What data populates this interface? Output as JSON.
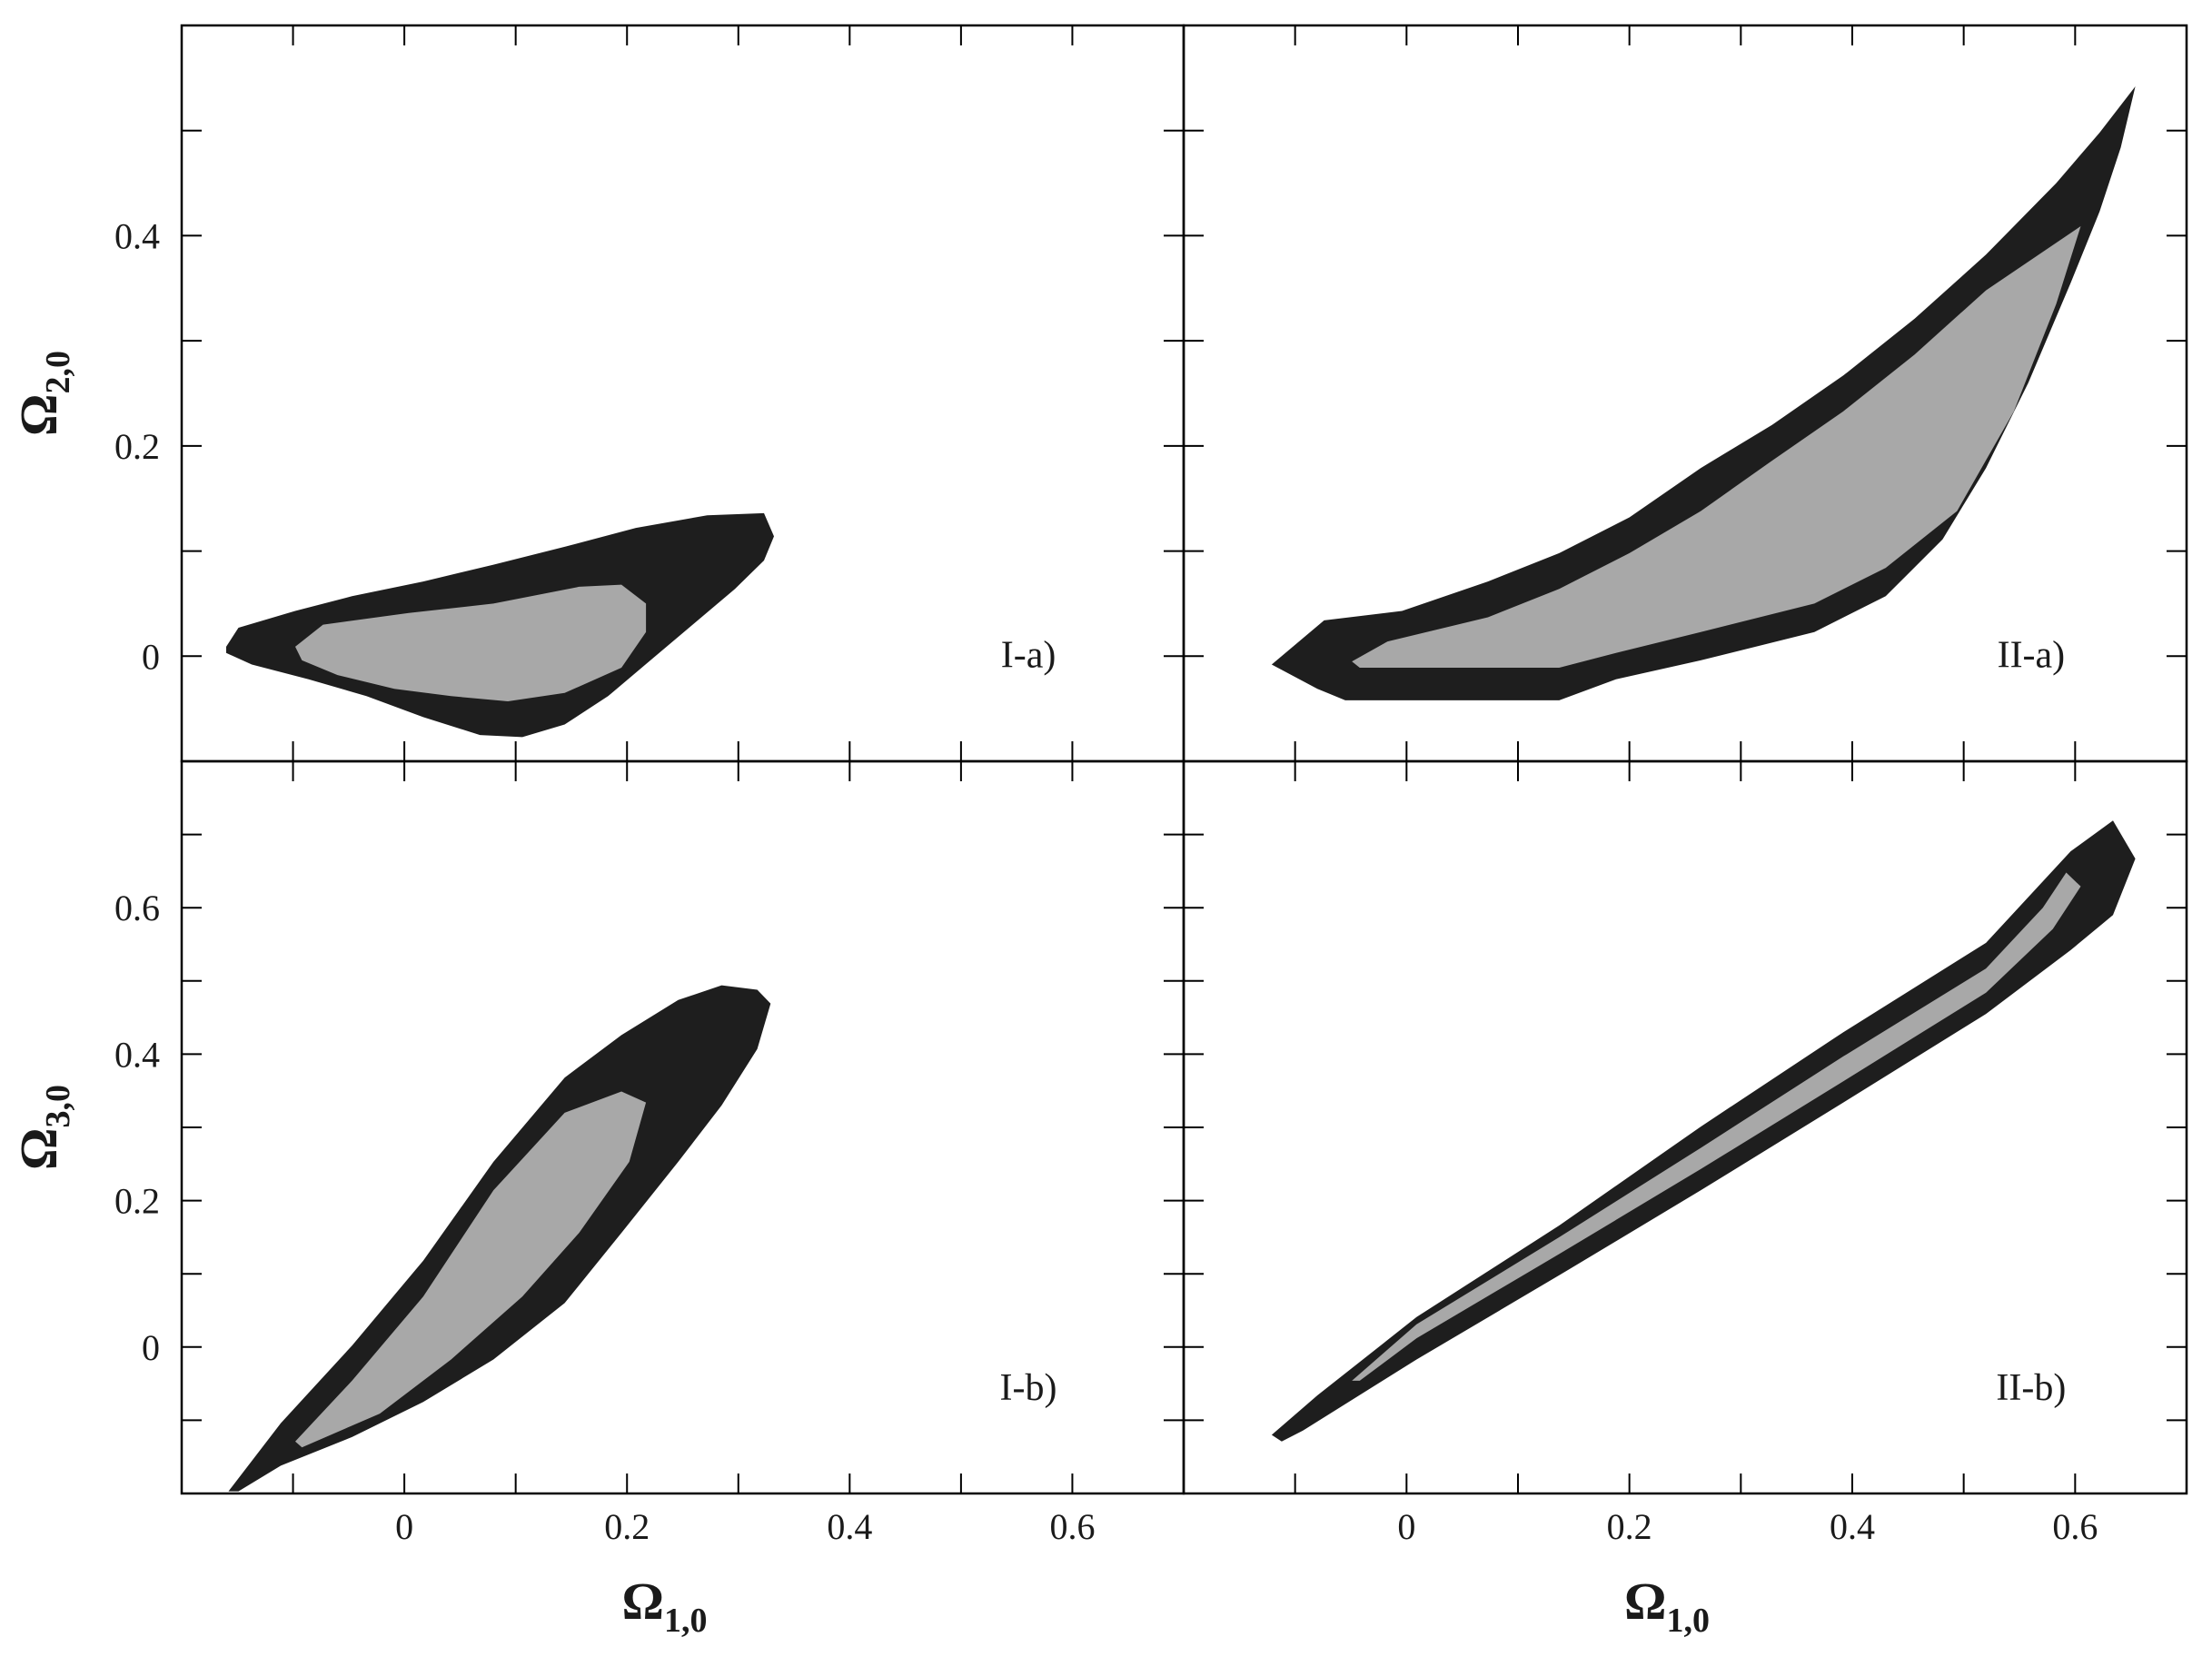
{
  "chart_data": [
    {
      "type": "contour",
      "annotation": "I-a)",
      "ylabel": {
        "text": "Ω",
        "sub": "2,0"
      },
      "xlim": [
        -0.2,
        0.7
      ],
      "xticks": [
        0,
        0.2,
        0.4,
        0.6
      ],
      "xticks_minor": [
        -0.1,
        0.1,
        0.3,
        0.5
      ],
      "xtick_labels": false,
      "ylim": [
        -0.1,
        0.6
      ],
      "yticks": [
        0,
        0.2,
        0.4
      ],
      "yticks_minor": [
        0.1,
        0.3,
        0.5
      ],
      "ytick_labels": true,
      "regions": [
        {
          "color": "#1e1e1e",
          "x": [
            -0.16,
            -0.149,
            -0.098,
            -0.047,
            0.017,
            0.08,
            0.144,
            0.208,
            0.272,
            0.323,
            0.332,
            0.323,
            0.297,
            0.259,
            0.221,
            0.183,
            0.144,
            0.106,
            0.068,
            0.017,
            -0.034,
            -0.086,
            -0.137,
            -0.16
          ],
          "y": [
            0.009,
            0.027,
            0.043,
            0.057,
            0.071,
            0.087,
            0.104,
            0.122,
            0.134,
            0.136,
            0.114,
            0.091,
            0.064,
            0.03,
            -0.004,
            -0.038,
            -0.065,
            -0.077,
            -0.075,
            -0.058,
            -0.038,
            -0.022,
            -0.008,
            0.003
          ]
        },
        {
          "color": "#a8a8a8",
          "x": [
            -0.098,
            -0.073,
            0.004,
            0.08,
            0.157,
            0.195,
            0.217,
            0.217,
            0.195,
            0.144,
            0.093,
            0.042,
            -0.009,
            -0.06,
            -0.092
          ],
          "y": [
            0.009,
            0.03,
            0.041,
            0.05,
            0.066,
            0.068,
            0.05,
            0.023,
            -0.011,
            -0.035,
            -0.043,
            -0.038,
            -0.031,
            -0.018,
            -0.004
          ]
        }
      ]
    },
    {
      "type": "contour",
      "annotation": "II-a)",
      "xlim": [
        -0.2,
        0.7
      ],
      "xticks": [
        0,
        0.2,
        0.4,
        0.6
      ],
      "xticks_minor": [
        -0.1,
        0.1,
        0.3,
        0.5
      ],
      "xtick_labels": false,
      "ylim": [
        -0.1,
        0.6
      ],
      "yticks": [
        0,
        0.2,
        0.4
      ],
      "yticks_minor": [
        0.1,
        0.3,
        0.5
      ],
      "ytick_labels": false,
      "regions": [
        {
          "color": "#1e1e1e",
          "x": [
            -0.121,
            -0.074,
            -0.004,
            0.073,
            0.137,
            0.2,
            0.264,
            0.328,
            0.392,
            0.456,
            0.52,
            0.583,
            0.622,
            0.654,
            0.641,
            0.622,
            0.596,
            0.558,
            0.52,
            0.481,
            0.43,
            0.366,
            0.264,
            0.188,
            0.137,
            -0.055,
            -0.08
          ],
          "y": [
            -0.008,
            0.034,
            0.043,
            0.071,
            0.098,
            0.132,
            0.179,
            0.22,
            0.267,
            0.321,
            0.382,
            0.45,
            0.498,
            0.542,
            0.484,
            0.423,
            0.355,
            0.26,
            0.179,
            0.111,
            0.057,
            0.023,
            -0.004,
            -0.022,
            -0.042,
            -0.042,
            -0.031
          ]
        },
        {
          "color": "#a8a8a8",
          "x": [
            -0.049,
            -0.017,
            0.073,
            0.137,
            0.2,
            0.264,
            0.328,
            0.392,
            0.456,
            0.52,
            0.605,
            0.583,
            0.545,
            0.494,
            0.43,
            0.366,
            0.264,
            0.188,
            0.137,
            0.009,
            -0.042
          ],
          "y": [
            -0.005,
            0.014,
            0.037,
            0.064,
            0.098,
            0.138,
            0.186,
            0.233,
            0.287,
            0.348,
            0.409,
            0.335,
            0.233,
            0.138,
            0.084,
            0.05,
            0.023,
            0.003,
            -0.011,
            -0.011,
            -0.011
          ]
        }
      ]
    },
    {
      "type": "contour",
      "annotation": "I-b)",
      "xlabel": {
        "text": "Ω",
        "sub": "1,0"
      },
      "ylabel": {
        "text": "Ω",
        "sub": "3,0"
      },
      "xlim": [
        -0.2,
        0.7
      ],
      "xticks": [
        0,
        0.2,
        0.4,
        0.6
      ],
      "xticks_minor": [
        -0.1,
        0.1,
        0.3,
        0.5
      ],
      "xtick_labels": true,
      "ylim": [
        -0.2,
        0.8
      ],
      "yticks": [
        0,
        0.2,
        0.4,
        0.6
      ],
      "yticks_minor": [
        -0.1,
        0.1,
        0.3,
        0.5,
        0.7
      ],
      "ytick_labels": true,
      "regions": [
        {
          "color": "#1e1e1e",
          "x": [
            -0.158,
            -0.111,
            -0.047,
            0.017,
            0.08,
            0.144,
            0.195,
            0.246,
            0.285,
            0.317,
            0.329,
            0.317,
            0.285,
            0.246,
            0.195,
            0.144,
            0.08,
            0.017,
            -0.047,
            -0.111,
            -0.149
          ],
          "y": [
            -0.197,
            -0.104,
            0.002,
            0.118,
            0.253,
            0.368,
            0.426,
            0.474,
            0.494,
            0.488,
            0.469,
            0.407,
            0.33,
            0.253,
            0.156,
            0.06,
            -0.017,
            -0.075,
            -0.123,
            -0.162,
            -0.197
          ]
        },
        {
          "color": "#a8a8a8",
          "x": [
            -0.098,
            -0.047,
            0.017,
            0.08,
            0.144,
            0.195,
            0.217,
            0.202,
            0.157,
            0.106,
            0.042,
            -0.022,
            -0.092
          ],
          "y": [
            -0.129,
            -0.046,
            0.069,
            0.214,
            0.32,
            0.349,
            0.334,
            0.253,
            0.156,
            0.069,
            -0.017,
            -0.091,
            -0.137
          ]
        }
      ]
    },
    {
      "type": "contour",
      "annotation": "II-b)",
      "xlabel": {
        "text": "Ω",
        "sub": "1,0"
      },
      "xlim": [
        -0.2,
        0.7
      ],
      "xticks": [
        0,
        0.2,
        0.4,
        0.6
      ],
      "xticks_minor": [
        -0.1,
        0.1,
        0.3,
        0.5
      ],
      "xtick_labels": true,
      "ylim": [
        -0.2,
        0.8
      ],
      "yticks": [
        0,
        0.2,
        0.4,
        0.6
      ],
      "yticks_minor": [
        -0.1,
        0.1,
        0.3,
        0.5,
        0.7
      ],
      "ytick_labels": false,
      "regions": [
        {
          "color": "#1e1e1e",
          "x": [
            -0.121,
            -0.08,
            0.009,
            0.137,
            0.264,
            0.392,
            0.52,
            0.596,
            0.634,
            0.654,
            0.634,
            0.596,
            0.52,
            0.392,
            0.264,
            0.137,
            0.009,
            -0.093,
            -0.112
          ],
          "y": [
            -0.12,
            -0.066,
            0.041,
            0.166,
            0.301,
            0.43,
            0.552,
            0.677,
            0.719,
            0.667,
            0.59,
            0.542,
            0.455,
            0.334,
            0.214,
            0.098,
            -0.017,
            -0.114,
            -0.129
          ]
        },
        {
          "color": "#a8a8a8",
          "x": [
            -0.049,
            0.009,
            0.137,
            0.264,
            0.392,
            0.52,
            0.571,
            0.592,
            0.605,
            0.58,
            0.52,
            0.392,
            0.264,
            0.137,
            0.009,
            -0.042
          ],
          "y": [
            -0.046,
            0.031,
            0.15,
            0.272,
            0.397,
            0.517,
            0.6,
            0.648,
            0.629,
            0.571,
            0.484,
            0.363,
            0.243,
            0.127,
            0.012,
            -0.046
          ]
        }
      ]
    }
  ]
}
